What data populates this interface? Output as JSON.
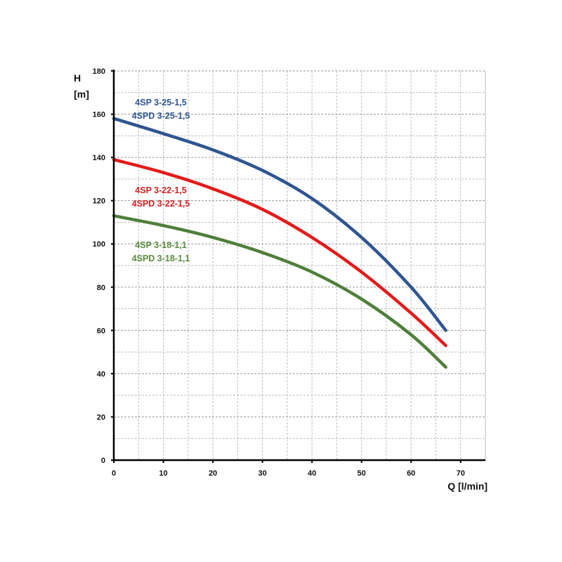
{
  "chart_data": {
    "type": "line",
    "title": "",
    "xlabel": "Q [l/min]",
    "ylabel_line1": "H",
    "ylabel_line2": "[m]",
    "xlim": [
      0,
      75
    ],
    "ylim": [
      0,
      180
    ],
    "xticks": [
      0,
      10,
      20,
      30,
      40,
      50,
      60,
      70
    ],
    "yticks": [
      0,
      20,
      40,
      60,
      80,
      100,
      120,
      140,
      160,
      180
    ],
    "grid": true,
    "series": [
      {
        "name": "4SP 3-25-1,5",
        "name2": "4SPD 3-25-1,5",
        "color": "#2f5592",
        "x": [
          0,
          10,
          20,
          30,
          40,
          50,
          60,
          67
        ],
        "y": [
          158,
          151,
          143.5,
          134,
          121,
          103,
          80,
          60
        ]
      },
      {
        "name": "4SP 3-22-1,5",
        "name2": "4SPD 3-22-1,5",
        "color": "#e31b1b",
        "x": [
          0,
          10,
          20,
          30,
          40,
          50,
          60,
          67
        ],
        "y": [
          139,
          133,
          125.5,
          116,
          103,
          87,
          68,
          53
        ]
      },
      {
        "name": "4SP 3-18-1,1",
        "name2": "4SPD 3-18-1,1",
        "color": "#4f7f3a",
        "x": [
          0,
          10,
          20,
          30,
          40,
          50,
          60,
          67
        ],
        "y": [
          113,
          108.5,
          103,
          96,
          87,
          74.5,
          58,
          43
        ]
      }
    ]
  }
}
